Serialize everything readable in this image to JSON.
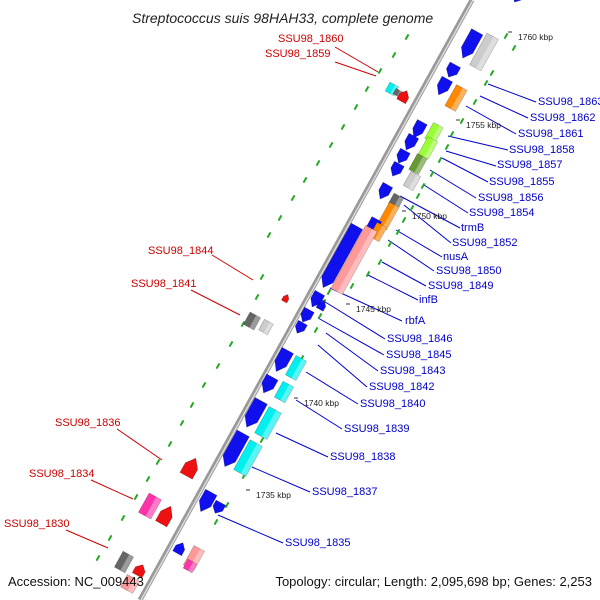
{
  "title": "Streptococcus suis 98HAH33, complete genome",
  "accession": "Accession: NC_009443",
  "summary": "Topology: circular; Length: 2,095,698 bp; Genes: 2,253",
  "colors": {
    "backbone": "#999999",
    "right_label": "#0000cc",
    "left_label": "#cc0000",
    "tick": "#22aa22",
    "blue": "#1010ee",
    "cyan": "#00f0f0",
    "gray": "#cccccc",
    "dark_gray": "#666666",
    "orange": "#ff8800",
    "lime": "#99ff33",
    "olive": "#669933",
    "pink": "#ff9999",
    "red": "#ee1111",
    "magenta": "#ff33aa"
  },
  "kbp_marks": [
    "1760 kbp",
    "1755 kbp",
    "1750 kbp",
    "1745 kbp",
    "1740 kbp",
    "1735 kbp"
  ],
  "right_labels": [
    "SSU98_1863",
    "SSU98_1862",
    "SSU98_1861",
    "SSU98_1858",
    "SSU98_1857",
    "SSU98_1855",
    "SSU98_1856",
    "SSU98_1854",
    "trmB",
    "SSU98_1852",
    "nusA",
    "SSU98_1850",
    "SSU98_1849",
    "infB",
    "rbfA",
    "SSU98_1846",
    "SSU98_1845",
    "SSU98_1843",
    "SSU98_1842",
    "SSU98_1840",
    "SSU98_1839",
    "SSU98_1838",
    "SSU98_1837",
    "SSU98_1835"
  ],
  "left_labels": [
    "SSU98_1860",
    "SSU98_1859",
    "SSU98_1844",
    "SSU98_1841",
    "SSU98_1836",
    "SSU98_1834",
    "SSU98_1830"
  ]
}
